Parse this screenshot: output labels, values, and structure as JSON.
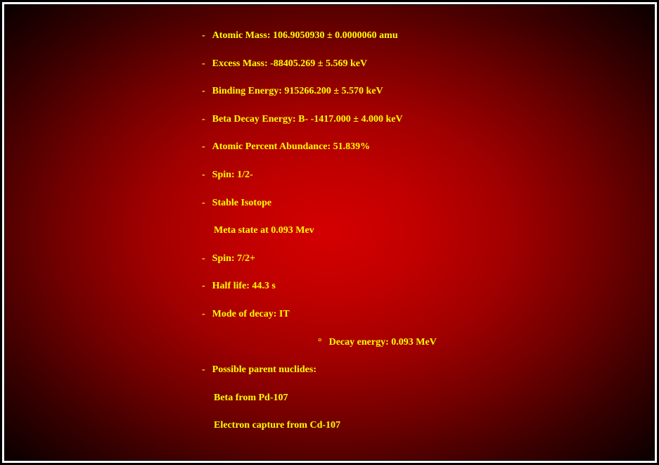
{
  "colors": {
    "text": "#ffff00",
    "bg_center": "#d40000",
    "bg_edge": "#0a0000",
    "border": "#000000",
    "page_bg": "#ffffff"
  },
  "typography": {
    "font_family": "Georgia, 'Times New Roman', serif",
    "font_size": 14,
    "font_weight": "bold"
  },
  "items": {
    "atomic_mass": "Atomic Mass: 106.9050930 ± 0.0000060 amu",
    "excess_mass": "Excess Mass: -88405.269 ± 5.569 keV",
    "binding_energy": "Binding Energy: 915266.200 ± 5.570 keV",
    "beta_decay": "Beta Decay Energy: B- -1417.000 ± 4.000 keV",
    "abundance": "Atomic Percent Abundance: 51.839%",
    "spin1": "Spin: 1/2-",
    "stable": "Stable Isotope",
    "meta_state": "Meta state at 0.093 Mev",
    "spin2": "Spin: 7/2+",
    "half_life": "Half life: 44.3 s",
    "decay_mode": "Mode of decay: IT",
    "decay_energy": "Decay energy: 0.093 MeV",
    "parent_nuclides": "Possible parent nuclides:",
    "beta_from": "Beta from Pd-107",
    "electron_capture": "Electron capture from Cd-107"
  },
  "markers": {
    "dash": "-",
    "degree": "°"
  }
}
